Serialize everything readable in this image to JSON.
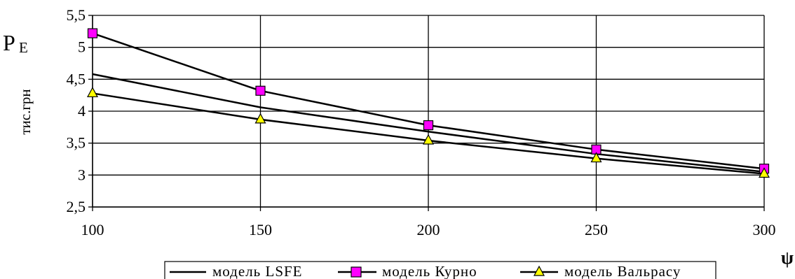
{
  "chart_data": {
    "type": "line",
    "x": [
      100,
      150,
      200,
      250,
      300
    ],
    "xlim": [
      100,
      300
    ],
    "ylim": [
      2.5,
      5.5
    ],
    "x_ticks": [
      "100",
      "150",
      "200",
      "250",
      "300"
    ],
    "y_ticks": [
      "2,5",
      "3",
      "3,5",
      "4",
      "4,5",
      "5",
      "5,5"
    ],
    "xlabel": "ψ",
    "ylabel_main": "P",
    "ylabel_sub": "E",
    "ylabel_unit": "тис.грн",
    "grid": true,
    "legend_position": "bottom",
    "series": [
      {
        "name": "модель LSFE",
        "values": [
          4.58,
          4.06,
          3.68,
          3.33,
          3.05
        ],
        "marker": "none",
        "color": "#000000"
      },
      {
        "name": "модель Курно",
        "values": [
          5.22,
          4.32,
          3.78,
          3.4,
          3.1
        ],
        "marker": "square",
        "color": "#ff00ff"
      },
      {
        "name": "модель Вальрасу",
        "values": [
          4.28,
          3.87,
          3.54,
          3.26,
          3.02
        ],
        "marker": "triangle",
        "color": "#ffff00"
      }
    ]
  }
}
